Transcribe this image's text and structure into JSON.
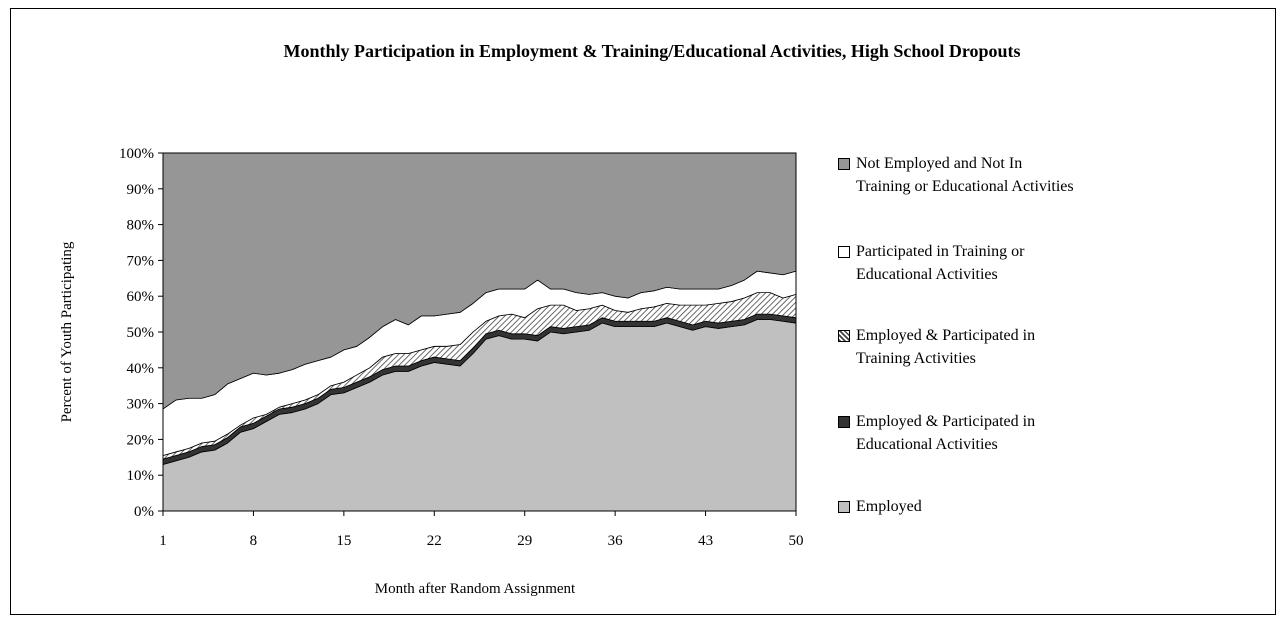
{
  "chart_data": {
    "type": "stacked_area",
    "title": "Monthly Participation in Employment & Training/Educational Activities, High School Dropouts",
    "x_label": "Month after Random Assignment",
    "y_label": "Percent of Youth Participating",
    "x": [
      1,
      2,
      3,
      4,
      5,
      6,
      7,
      8,
      9,
      10,
      11,
      12,
      13,
      14,
      15,
      16,
      17,
      18,
      19,
      20,
      21,
      22,
      23,
      24,
      25,
      26,
      27,
      28,
      29,
      30,
      31,
      32,
      33,
      34,
      35,
      36,
      37,
      38,
      39,
      40,
      41,
      42,
      43,
      44,
      45,
      46,
      47,
      48,
      49,
      50
    ],
    "xlim": [
      1,
      50
    ],
    "xticks": [
      1,
      8,
      15,
      22,
      29,
      36,
      43,
      50
    ],
    "ylim": [
      0,
      100
    ],
    "yticks": [
      {
        "value": 0,
        "label": "0%"
      },
      {
        "value": 10,
        "label": "10%"
      },
      {
        "value": 20,
        "label": "20%"
      },
      {
        "value": 30,
        "label": "30%"
      },
      {
        "value": 40,
        "label": "40%"
      },
      {
        "value": 50,
        "label": "50%"
      },
      {
        "value": 60,
        "label": "60%"
      },
      {
        "value": 70,
        "label": "70%"
      },
      {
        "value": 80,
        "label": "80%"
      },
      {
        "value": 90,
        "label": "90%"
      },
      {
        "value": 100,
        "label": "100%"
      }
    ],
    "series": [
      {
        "name": "Employed",
        "color": "#c0c0c0",
        "values": [
          13,
          14,
          15,
          16.5,
          17,
          19,
          22,
          23,
          25,
          27,
          27.5,
          28.5,
          30,
          32.5,
          33,
          34.5,
          36,
          38,
          39,
          39,
          40.5,
          41.5,
          41,
          40.5,
          44,
          48,
          49,
          48,
          48,
          47.5,
          50,
          49.5,
          50,
          50.5,
          52.5,
          51.5,
          51.5,
          51.5,
          51.5,
          52.5,
          51.5,
          50.5,
          51.5,
          51,
          51.5,
          52,
          53.5,
          53.5,
          53,
          52.5
        ]
      },
      {
        "name": "Employed & Participated in Educational Activities",
        "color": "#333333",
        "values": [
          1.5,
          1.5,
          1.5,
          1.5,
          1.5,
          1.5,
          1.5,
          1.5,
          1.5,
          1.5,
          1.5,
          1.5,
          1.5,
          1.5,
          1.5,
          1.5,
          1.5,
          1.5,
          1.5,
          1.5,
          1.5,
          1.5,
          1.5,
          1.5,
          1.5,
          1.5,
          1.5,
          1.5,
          1.5,
          1.5,
          1.5,
          1.5,
          1.5,
          1.5,
          1.5,
          1.5,
          1.5,
          1.5,
          1.5,
          1.5,
          1.5,
          1.5,
          1.5,
          1.5,
          1.5,
          1.5,
          1.5,
          1.5,
          1.5,
          1.5
        ]
      },
      {
        "name": "Employed & Participated in Training Activities",
        "color": "#555555",
        "pattern": "diagonal",
        "values": [
          1,
          1,
          1,
          1,
          1,
          1,
          0.5,
          1.5,
          0.5,
          0.5,
          1,
          1,
          1,
          1,
          1.5,
          2,
          2.5,
          3.5,
          3.5,
          3.5,
          3,
          3,
          3.5,
          4.5,
          4.5,
          3.5,
          4,
          5.5,
          4.5,
          7.5,
          6,
          6.5,
          4.5,
          4.5,
          3.5,
          3,
          2.5,
          3.5,
          4,
          4,
          4.5,
          5.5,
          4.5,
          5.5,
          5.5,
          6,
          6,
          6,
          5,
          6.5
        ]
      },
      {
        "name": "Participated in Training or Educational Activities",
        "color": "#ffffff",
        "values": [
          13,
          14.5,
          14,
          12.5,
          13,
          14,
          13,
          12.5,
          11,
          9.5,
          9.5,
          10,
          9.5,
          8,
          9,
          8,
          8.5,
          8.5,
          9.5,
          8,
          9.5,
          8.5,
          9,
          9,
          8,
          8,
          7.5,
          7,
          8,
          8,
          4.5,
          4.5,
          5,
          4,
          3.5,
          4,
          4,
          4.5,
          4.5,
          4.5,
          4.5,
          4.5,
          4.5,
          4,
          4.5,
          5,
          6,
          5.5,
          6.5,
          6.5
        ]
      },
      {
        "name": "Not Employed and Not In Training or Educational Activities",
        "color": "#969696",
        "values": [
          71.5,
          69,
          68.5,
          68.5,
          67.5,
          64.5,
          63,
          61.5,
          62,
          61.5,
          60.5,
          59,
          58,
          57,
          55,
          54,
          51.5,
          48.5,
          46.5,
          48,
          45.5,
          45.5,
          45,
          44.5,
          42,
          39,
          38,
          38,
          38,
          35.5,
          38,
          38,
          39,
          39.5,
          39,
          40,
          40.5,
          39,
          38.5,
          37.5,
          38,
          38,
          38,
          38,
          37,
          35.5,
          33,
          33.5,
          34,
          33
        ]
      }
    ],
    "legend": "right"
  }
}
